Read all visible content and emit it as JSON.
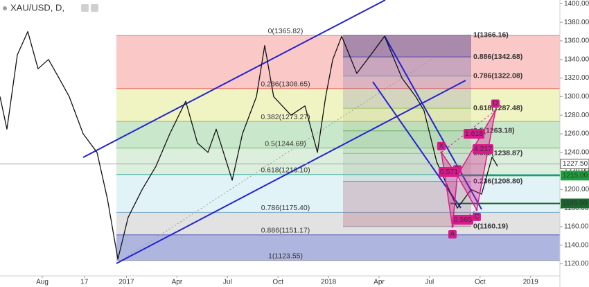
{
  "chart_data": {
    "type": "line",
    "title": "XAU/USD, D,",
    "color": "#111111",
    "x": [
      4.49,
      4.9,
      5.52,
      6.14,
      6.75,
      7.37,
      7.99,
      8.6,
      9.43,
      10.25,
      10.87,
      11.49,
      12.1,
      12.93,
      13.75,
      14.57,
      15.52,
      16.22,
      16.84,
      17.33,
      18.28,
      18.89,
      19.72,
      20.21,
      20.74,
      21.77,
      22.6,
      23.34,
      23.83,
      24.25,
      24.78,
      25.68,
      26.51,
      27.33,
      28.36,
      29.18,
      29.67,
      30.42,
      31.03,
      31.65,
      32.47,
      33.09,
      33.71,
      34.04
    ],
    "values": [
      1300,
      1265,
      1345,
      1370,
      1330,
      1340,
      1320,
      1300,
      1260,
      1240,
      1190,
      1125,
      1170,
      1200,
      1225,
      1260,
      1295,
      1250,
      1240,
      1265,
      1210,
      1260,
      1300,
      1355,
      1300,
      1280,
      1290,
      1240,
      1300,
      1340,
      1365,
      1325,
      1345,
      1365,
      1320,
      1300,
      1285,
      1230,
      1205,
      1180,
      1200,
      1195,
      1235,
      1225
    ],
    "xlim": [
      4.49,
      37.74
    ],
    "xticks": [
      {
        "value": 7,
        "label": "Aug"
      },
      {
        "value": 9.5,
        "label": "17"
      },
      {
        "value": 12,
        "label": "2017"
      },
      {
        "value": 15,
        "label": "Apr"
      },
      {
        "value": 18,
        "label": "Jul"
      },
      {
        "value": 21,
        "label": "Oct"
      },
      {
        "value": 24,
        "label": "2018"
      },
      {
        "value": 27,
        "label": "Apr"
      },
      {
        "value": 30,
        "label": "Jul"
      },
      {
        "value": 33,
        "label": "Oct"
      },
      {
        "value": 36,
        "label": "2019"
      }
    ],
    "ylim": [
      1107,
      1404
    ],
    "yticks": [
      {
        "value": 1120,
        "label": "1120.00"
      },
      {
        "value": 1140,
        "label": "1140.00"
      },
      {
        "value": 1160,
        "label": "1160.00"
      },
      {
        "value": 1180,
        "label": "1180.00"
      },
      {
        "value": 1200,
        "label": "1200.00"
      },
      {
        "value": 1220,
        "label": "1220.00"
      },
      {
        "value": 1240,
        "label": "1240.00"
      },
      {
        "value": 1260,
        "label": "1260.00"
      },
      {
        "value": 1280,
        "label": "1280.00"
      },
      {
        "value": 1300,
        "label": "1300.00"
      },
      {
        "value": 1320,
        "label": "1320.00"
      },
      {
        "value": 1340,
        "label": "1340.00"
      },
      {
        "value": 1360,
        "label": "1360.00"
      },
      {
        "value": 1380,
        "label": "1380.00"
      },
      {
        "value": 1400,
        "label": "1400.00"
      }
    ],
    "price_lines": [
      {
        "value": 1227.5,
        "label": "1227.50",
        "color": "#9e9e9e"
      },
      {
        "value": 1215,
        "label": "1215.00",
        "color": "#1e9e3e"
      },
      {
        "value": 1185,
        "label": "1185.00",
        "color": "#17692c"
      }
    ],
    "fib_left": [
      {
        "value": 1365.82,
        "label": "0(1365.82)",
        "color": "#808080"
      },
      {
        "value": 1308.65,
        "label": "0.236(1308.65)",
        "color": "#e53935"
      },
      {
        "value": 1273.27,
        "label": "0.382(1273.27)",
        "color": "#9e9d24"
      },
      {
        "value": 1244.69,
        "label": "0.5(1244.69)",
        "color": "#43a047"
      },
      {
        "value": 1216.1,
        "label": "0.618(1216.10)",
        "color": "#009688"
      },
      {
        "value": 1175.4,
        "label": "0.786(1175.40)",
        "color": "#4f8fbf"
      },
      {
        "value": 1151.17,
        "label": "0.886(1151.17)",
        "color": "#2a2ab0"
      },
      {
        "value": 1123.55,
        "label": "1(1123.55)",
        "color": "#808080"
      }
    ],
    "fib_right": [
      {
        "value": 1366.16,
        "label": "1(1366.16)",
        "color": "#808080"
      },
      {
        "value": 1342.68,
        "label": "0.886(1342.68)",
        "color": "#2a2ab0"
      },
      {
        "value": 1322.08,
        "label": "0.786(1322.08)",
        "color": "#4f8fbf"
      },
      {
        "value": 1287.48,
        "label": "0.618(1287.48)",
        "color": "#7cb342"
      },
      {
        "value": 1263.18,
        "label": "0.5(1263.18)",
        "color": "#43a047"
      },
      {
        "value": 1238.87,
        "label": "0.382(1238.87)",
        "color": "#7cb342"
      },
      {
        "value": 1208.8,
        "label": "0.236(1208.80)",
        "color": "#e53935"
      },
      {
        "value": 1160.19,
        "label": "0(1160.19)",
        "color": "#808080"
      }
    ],
    "pattern": {
      "color": "#d81b8c",
      "points": [
        {
          "label": "X",
          "x": 30.7,
          "value": 1240
        },
        {
          "label": "A",
          "x": 31.36,
          "value": 1160
        },
        {
          "label": "B",
          "x": 31.65,
          "value": 1215
        },
        {
          "label": "C",
          "x": 32.8,
          "value": 1178
        },
        {
          "label": "D",
          "x": 33.91,
          "value": 1285
        }
      ],
      "ratios": [
        "0.571",
        "0.565",
        "1.618",
        "4.217"
      ]
    }
  }
}
